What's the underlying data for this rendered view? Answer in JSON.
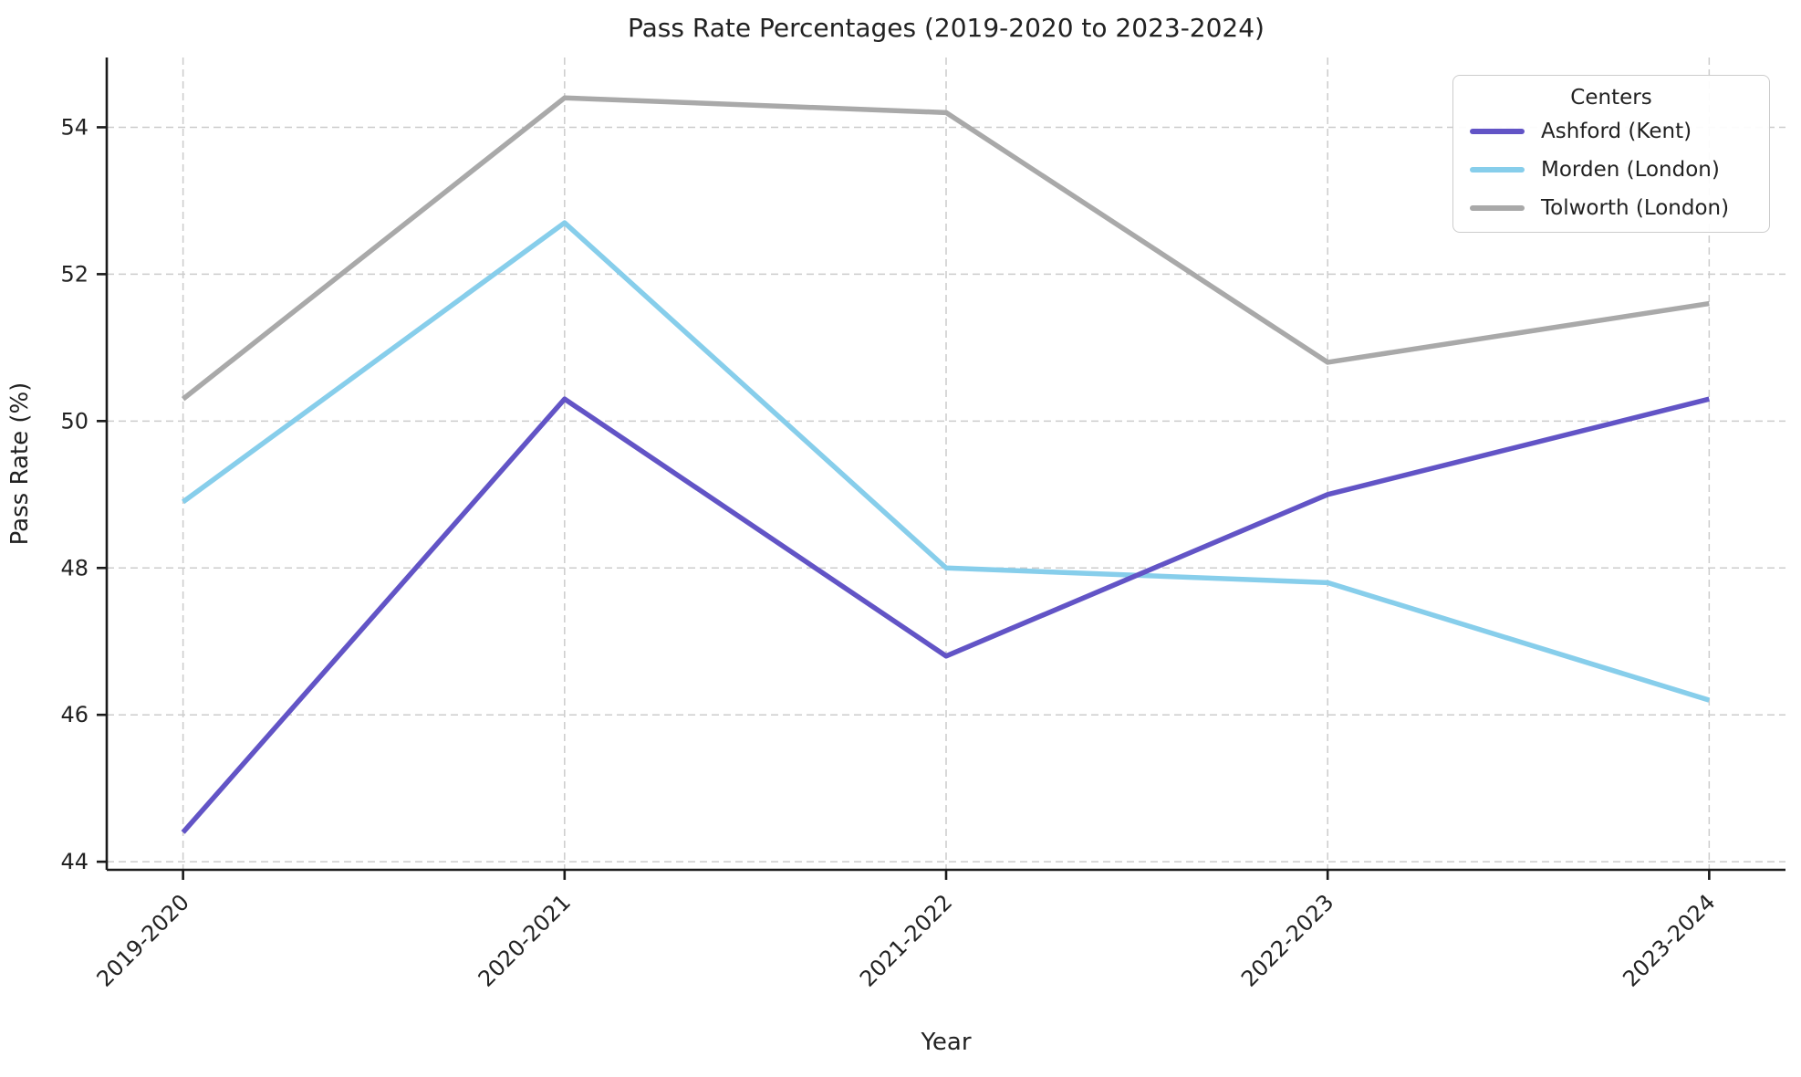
{
  "page": {
    "background": "#ffffff"
  },
  "chart_data": {
    "type": "line",
    "title": "Pass Rate Percentages (2019-2020 to 2023-2024)",
    "xlabel": "Year",
    "ylabel": "Pass Rate (%)",
    "categories": [
      "2019-2020",
      "2020-2021",
      "2021-2022",
      "2022-2023",
      "2023-2024"
    ],
    "series": [
      {
        "name": "Ashford (Kent)",
        "color": "#6254C6",
        "values": [
          44.4,
          50.3,
          46.8,
          49.0,
          50.3
        ]
      },
      {
        "name": "Morden (London)",
        "color": "#87CEEB",
        "values": [
          48.9,
          52.7,
          48.0,
          47.8,
          46.2
        ]
      },
      {
        "name": "Tolworth (London)",
        "color": "#A9A9A9",
        "values": [
          50.3,
          54.4,
          54.2,
          50.8,
          51.6
        ]
      }
    ],
    "yticks": [
      44,
      46,
      48,
      50,
      52,
      54
    ],
    "ylim": [
      43.89,
      54.95
    ],
    "x_margin": 0.2,
    "grid": true,
    "grid_color": "#cccccc",
    "axis_color": "#1a1a1a",
    "text_color": "#222222",
    "legend": {
      "title": "Centers",
      "position": "upper right"
    }
  }
}
